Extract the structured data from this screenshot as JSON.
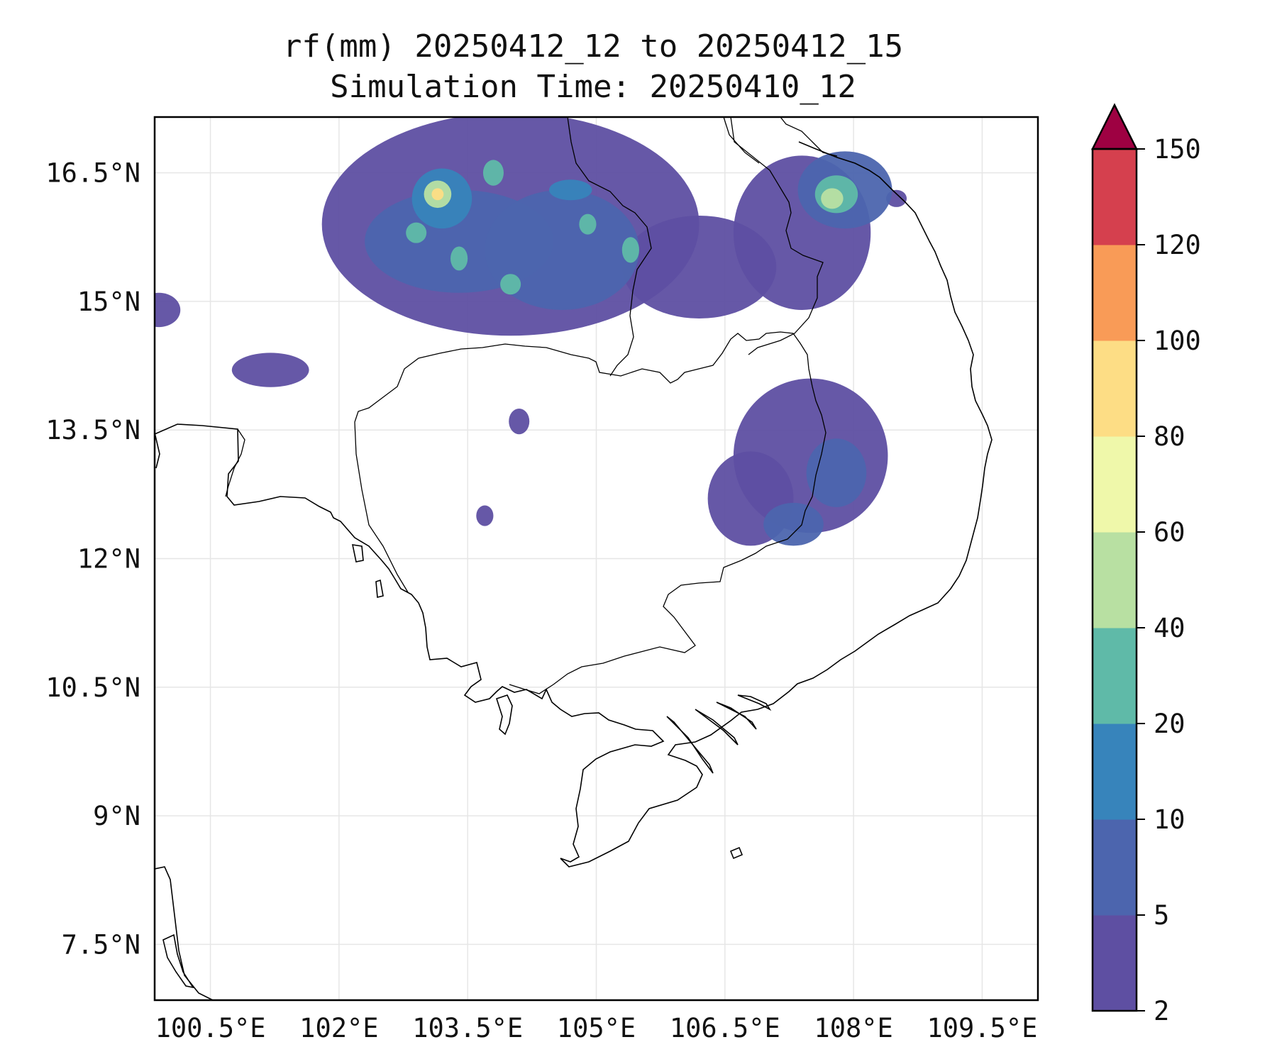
{
  "map": {
    "title_line1": "rf(mm) 20250412_12 to 20250412_15",
    "title_line2": "Simulation Time: 20250410_12",
    "lon_range": [
      99.85,
      110.15
    ],
    "lat_range": [
      6.85,
      17.15
    ],
    "lon_ticks": [
      {
        "value": 100.5,
        "label": "100.5°E"
      },
      {
        "value": 102.0,
        "label": "102°E"
      },
      {
        "value": 103.5,
        "label": "103.5°E"
      },
      {
        "value": 105.0,
        "label": "105°E"
      },
      {
        "value": 106.5,
        "label": "106.5°E"
      },
      {
        "value": 108.0,
        "label": "108°E"
      },
      {
        "value": 109.5,
        "label": "109.5°E"
      }
    ],
    "lat_ticks": [
      {
        "value": 16.5,
        "label": "16.5°N"
      },
      {
        "value": 15.0,
        "label": "15°N"
      },
      {
        "value": 13.5,
        "label": "13.5°N"
      },
      {
        "value": 12.0,
        "label": "12°N"
      },
      {
        "value": 10.5,
        "label": "10.5°N"
      },
      {
        "value": 9.0,
        "label": "9°N"
      },
      {
        "value": 7.5,
        "label": "7.5°N"
      }
    ],
    "colorbar": {
      "levels": [
        "2",
        "5",
        "10",
        "20",
        "40",
        "60",
        "80",
        "100",
        "120",
        "150"
      ],
      "colors": [
        "#5e4fa2",
        "#4c65ae",
        "#3784bb",
        "#5fbaa8",
        "#b8e0a2",
        "#eff8aa",
        "#fddd85",
        "#f99b57",
        "#d5404e",
        "#9e0142"
      ],
      "extend": "max"
    },
    "rain_cells": [
      {
        "lon": 104.0,
        "lat": 15.9,
        "rx": 2.2,
        "ry": 1.3,
        "level": 1
      },
      {
        "lon": 103.4,
        "lat": 15.7,
        "rx": 1.1,
        "ry": 0.6,
        "level": 2
      },
      {
        "lon": 104.6,
        "lat": 15.6,
        "rx": 0.9,
        "ry": 0.7,
        "level": 2
      },
      {
        "lon": 103.2,
        "lat": 16.2,
        "rx": 0.35,
        "ry": 0.35,
        "level": 3
      },
      {
        "lon": 103.15,
        "lat": 16.25,
        "rx": 0.16,
        "ry": 0.16,
        "level": 5
      },
      {
        "lon": 103.15,
        "lat": 16.25,
        "rx": 0.07,
        "ry": 0.07,
        "level": 7
      },
      {
        "lon": 102.9,
        "lat": 15.8,
        "rx": 0.12,
        "ry": 0.12,
        "level": 4
      },
      {
        "lon": 103.4,
        "lat": 15.5,
        "rx": 0.1,
        "ry": 0.14,
        "level": 4
      },
      {
        "lon": 104.0,
        "lat": 15.2,
        "rx": 0.12,
        "ry": 0.12,
        "level": 4
      },
      {
        "lon": 104.9,
        "lat": 15.9,
        "rx": 0.1,
        "ry": 0.12,
        "level": 4
      },
      {
        "lon": 105.4,
        "lat": 15.6,
        "rx": 0.1,
        "ry": 0.15,
        "level": 4
      },
      {
        "lon": 104.7,
        "lat": 16.3,
        "rx": 0.25,
        "ry": 0.12,
        "level": 3
      },
      {
        "lon": 103.8,
        "lat": 16.5,
        "rx": 0.12,
        "ry": 0.15,
        "level": 4
      },
      {
        "lon": 106.2,
        "lat": 15.4,
        "rx": 0.9,
        "ry": 0.6,
        "level": 1
      },
      {
        "lon": 107.4,
        "lat": 15.8,
        "rx": 0.8,
        "ry": 0.9,
        "level": 1
      },
      {
        "lon": 107.9,
        "lat": 16.3,
        "rx": 0.55,
        "ry": 0.45,
        "level": 2
      },
      {
        "lon": 107.8,
        "lat": 16.25,
        "rx": 0.25,
        "ry": 0.22,
        "level": 4
      },
      {
        "lon": 107.75,
        "lat": 16.2,
        "rx": 0.13,
        "ry": 0.12,
        "level": 5
      },
      {
        "lon": 101.2,
        "lat": 14.2,
        "rx": 0.45,
        "ry": 0.2,
        "level": 1
      },
      {
        "lon": 99.9,
        "lat": 14.9,
        "rx": 0.25,
        "ry": 0.2,
        "level": 1
      },
      {
        "lon": 107.5,
        "lat": 13.2,
        "rx": 0.9,
        "ry": 0.9,
        "level": 1
      },
      {
        "lon": 107.8,
        "lat": 13.0,
        "rx": 0.35,
        "ry": 0.4,
        "level": 2
      },
      {
        "lon": 106.8,
        "lat": 12.7,
        "rx": 0.5,
        "ry": 0.55,
        "level": 1
      },
      {
        "lon": 107.3,
        "lat": 12.4,
        "rx": 0.35,
        "ry": 0.25,
        "level": 2
      },
      {
        "lon": 104.1,
        "lat": 13.6,
        "rx": 0.12,
        "ry": 0.15,
        "level": 1
      },
      {
        "lon": 103.7,
        "lat": 12.5,
        "rx": 0.1,
        "ry": 0.12,
        "level": 1
      },
      {
        "lon": 108.5,
        "lat": 16.2,
        "rx": 0.12,
        "ry": 0.1,
        "level": 1
      }
    ]
  }
}
